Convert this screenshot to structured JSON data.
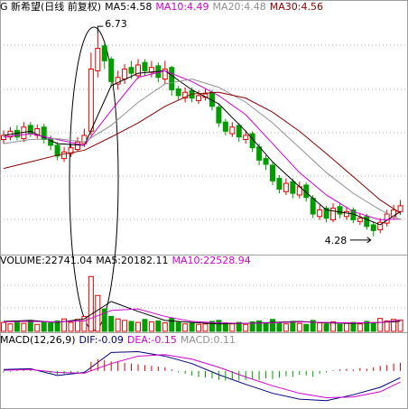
{
  "chart_data": [
    {
      "type": "candlestick",
      "title": "G 新希望(日线 前复权)",
      "ylim": [
        4.06,
        7.08
      ],
      "series": [
        {
          "type": "candlestick",
          "up_color": "#e00000",
          "down_color": "#009c00",
          "open": [
            5.45,
            5.48,
            5.56,
            5.46,
            5.62,
            5.5,
            5.6,
            5.46,
            5.38,
            5.22,
            5.28,
            5.33,
            5.4,
            5.55,
            6.28,
            6.58,
            6.42,
            6.12,
            6.18,
            6.32,
            6.22,
            6.38,
            6.26,
            6.34,
            6.18,
            6.32,
            6.06,
            5.95,
            6.04,
            5.92,
            5.96,
            6.02,
            5.84,
            5.66,
            5.52,
            5.62,
            5.45,
            5.52,
            5.36,
            5.22,
            5.14,
            4.98,
            4.82,
            4.94,
            4.78,
            4.9,
            4.74,
            4.52,
            4.62,
            4.48,
            4.64,
            4.52,
            4.6,
            4.46,
            4.52,
            4.42,
            4.36,
            4.44,
            4.52,
            4.58
          ],
          "high": [
            5.56,
            5.6,
            5.62,
            5.66,
            5.66,
            5.63,
            5.64,
            5.5,
            5.42,
            5.36,
            5.4,
            5.48,
            5.58,
            6.5,
            6.73,
            6.62,
            6.45,
            6.28,
            6.36,
            6.4,
            6.42,
            6.42,
            6.4,
            6.38,
            6.4,
            6.34,
            6.1,
            6.08,
            6.08,
            6.04,
            6.06,
            6.05,
            5.88,
            5.7,
            5.66,
            5.65,
            5.56,
            5.55,
            5.4,
            5.26,
            5.18,
            5.02,
            4.98,
            4.98,
            4.94,
            4.93,
            4.78,
            4.66,
            4.65,
            4.68,
            4.68,
            4.64,
            4.63,
            4.56,
            4.55,
            4.46,
            4.5,
            4.6,
            4.66,
            4.72
          ],
          "low": [
            5.4,
            5.44,
            5.44,
            5.42,
            5.48,
            5.46,
            5.4,
            5.32,
            5.2,
            5.18,
            5.24,
            5.3,
            5.36,
            5.5,
            6.2,
            6.3,
            6.08,
            6.05,
            6.12,
            6.18,
            6.18,
            6.22,
            6.2,
            6.14,
            6.12,
            5.98,
            5.92,
            5.9,
            5.9,
            5.88,
            5.92,
            5.8,
            5.6,
            5.5,
            5.48,
            5.42,
            5.4,
            5.3,
            5.14,
            5.08,
            4.9,
            4.8,
            4.78,
            4.74,
            4.74,
            4.7,
            4.5,
            4.48,
            4.45,
            4.45,
            4.5,
            4.48,
            4.44,
            4.42,
            4.36,
            4.28,
            4.32,
            4.4,
            4.48,
            4.54
          ],
          "close": [
            5.5,
            5.55,
            5.48,
            5.6,
            5.52,
            5.58,
            5.45,
            5.38,
            5.25,
            5.3,
            5.35,
            5.42,
            5.5,
            6.3,
            6.55,
            6.4,
            6.15,
            6.2,
            6.3,
            6.25,
            6.35,
            6.28,
            6.32,
            6.2,
            6.3,
            6.05,
            5.98,
            6.02,
            5.95,
            5.98,
            6.0,
            5.85,
            5.65,
            5.55,
            5.6,
            5.48,
            5.5,
            5.35,
            5.2,
            5.15,
            4.95,
            4.85,
            4.92,
            4.8,
            4.88,
            4.75,
            4.55,
            4.6,
            4.5,
            4.62,
            4.55,
            4.58,
            4.48,
            4.5,
            4.4,
            4.35,
            4.45,
            4.55,
            4.6,
            4.65
          ]
        },
        {
          "type": "line",
          "name": "MA5:4.58",
          "color": "#000000",
          "x": [
            0,
            4,
            8,
            12,
            16,
            20,
            24,
            28,
            32,
            36,
            40,
            44,
            48,
            52,
            56,
            59
          ],
          "values": [
            5.5,
            5.55,
            5.4,
            5.38,
            6.1,
            6.25,
            6.28,
            6.05,
            5.88,
            5.55,
            5.18,
            4.88,
            4.6,
            4.55,
            4.42,
            4.58
          ]
        },
        {
          "type": "line",
          "name": "MA10:4.49",
          "color": "#d000d0",
          "x": [
            0,
            4,
            8,
            12,
            16,
            20,
            24,
            28,
            32,
            36,
            40,
            44,
            48,
            52,
            56,
            59
          ],
          "values": [
            5.48,
            5.52,
            5.45,
            5.38,
            5.8,
            6.2,
            6.28,
            6.15,
            5.98,
            5.75,
            5.4,
            5.05,
            4.78,
            4.58,
            4.48,
            4.49
          ]
        },
        {
          "type": "line",
          "name": "MA20:4.48",
          "color": "#909090",
          "x": [
            0,
            4,
            8,
            12,
            16,
            20,
            24,
            28,
            32,
            36,
            40,
            44,
            48,
            52,
            56,
            59
          ],
          "values": [
            5.4,
            5.45,
            5.46,
            5.42,
            5.62,
            5.9,
            6.12,
            6.18,
            6.08,
            5.9,
            5.65,
            5.35,
            5.05,
            4.8,
            4.6,
            4.48
          ]
        },
        {
          "type": "line",
          "name": "MA30:4.56",
          "color": "#8b0000",
          "x": [
            0,
            4,
            8,
            12,
            16,
            20,
            24,
            28,
            32,
            36,
            40,
            44,
            48,
            52,
            56,
            59
          ],
          "values": [
            5.1,
            5.18,
            5.26,
            5.32,
            5.48,
            5.65,
            5.85,
            6.0,
            6.02,
            5.95,
            5.78,
            5.55,
            5.28,
            5.0,
            4.72,
            4.56
          ]
        }
      ],
      "annotations": [
        {
          "label": "6.73",
          "x": 14,
          "y": 6.73
        },
        {
          "label": "4.28",
          "x": 55,
          "y": 4.28
        }
      ]
    },
    {
      "type": "volume",
      "ylim": [
        0,
        125000
      ],
      "series": [
        {
          "type": "bar",
          "name": "VOLUME:22741.04",
          "values": [
            18000,
            15000,
            20000,
            16000,
            22000,
            14000,
            19000,
            17000,
            21000,
            25000,
            18000,
            24000,
            30000,
            110000,
            72000,
            45000,
            30000,
            25000,
            22000,
            20000,
            18000,
            24000,
            19000,
            21000,
            17000,
            26000,
            18000,
            15000,
            16000,
            14000,
            15000,
            20000,
            22000,
            17000,
            15000,
            18000,
            14000,
            19000,
            21000,
            16000,
            24000,
            18000,
            15000,
            20000,
            16000,
            14000,
            22000,
            17000,
            15000,
            19000,
            14000,
            16000,
            18000,
            15000,
            20000,
            17000,
            26000,
            21000,
            24000,
            22741.04
          ]
        },
        {
          "type": "line",
          "name": "MA5:20182.11",
          "color": "#000000",
          "x": [
            0,
            4,
            8,
            12,
            16,
            20,
            24,
            28,
            32,
            36,
            40,
            44,
            48,
            52,
            56,
            59
          ],
          "values": [
            20000,
            22000,
            18000,
            25000,
            60000,
            40000,
            22000,
            18000,
            15000,
            16000,
            18000,
            20000,
            17000,
            16000,
            18000,
            20182.11
          ]
        },
        {
          "type": "line",
          "name": "MA10:22528.94",
          "color": "#d000d0",
          "x": [
            0,
            4,
            8,
            12,
            16,
            20,
            24,
            28,
            32,
            36,
            40,
            44,
            48,
            52,
            56,
            59
          ],
          "values": [
            19000,
            20000,
            19000,
            21000,
            42000,
            45000,
            30000,
            20000,
            17000,
            16000,
            17000,
            19000,
            18000,
            17000,
            18000,
            22528.94
          ]
        }
      ]
    },
    {
      "type": "macd",
      "title": "MACD(12,26,9)",
      "ylim": [
        -0.5,
        0.4
      ],
      "series": [
        {
          "type": "line",
          "name": "DIF:-0.09",
          "color": "#000080",
          "x": [
            0,
            4,
            8,
            12,
            16,
            20,
            24,
            28,
            32,
            36,
            40,
            44,
            48,
            52,
            56,
            59
          ],
          "values": [
            0.02,
            0.03,
            -0.06,
            -0.02,
            0.25,
            0.26,
            0.2,
            0.1,
            -0.05,
            -0.18,
            -0.3,
            -0.38,
            -0.4,
            -0.32,
            -0.22,
            -0.09
          ]
        },
        {
          "type": "line",
          "name": "DEA:-0.15",
          "color": "#d000d0",
          "x": [
            0,
            4,
            8,
            12,
            16,
            20,
            24,
            28,
            32,
            36,
            40,
            44,
            48,
            52,
            56,
            59
          ],
          "values": [
            0.01,
            0.02,
            -0.02,
            -0.03,
            0.1,
            0.2,
            0.22,
            0.16,
            0.05,
            -0.08,
            -0.2,
            -0.3,
            -0.36,
            -0.35,
            -0.28,
            -0.15
          ]
        },
        {
          "type": "histogram",
          "name": "MACD:0.11",
          "color": "#909090",
          "up_color": "#e00000",
          "down_color": "#009c00",
          "values": [
            -0.02,
            -0.01,
            0.01,
            0.02,
            0.01,
            0.0,
            -0.02,
            -0.04,
            -0.05,
            -0.04,
            -0.03,
            -0.02,
            0.0,
            0.12,
            0.16,
            0.15,
            0.13,
            0.12,
            0.11,
            0.1,
            0.09,
            0.08,
            0.07,
            0.06,
            0.05,
            0.02,
            -0.02,
            -0.04,
            -0.06,
            -0.08,
            -0.09,
            -0.1,
            -0.12,
            -0.13,
            -0.12,
            -0.13,
            -0.12,
            -0.11,
            -0.12,
            -0.1,
            -0.11,
            -0.09,
            -0.07,
            -0.08,
            -0.05,
            -0.06,
            -0.08,
            -0.04,
            -0.02,
            0.01,
            0.02,
            0.03,
            0.02,
            0.04,
            0.03,
            0.05,
            0.07,
            0.08,
            0.1,
            0.11
          ]
        }
      ]
    }
  ]
}
